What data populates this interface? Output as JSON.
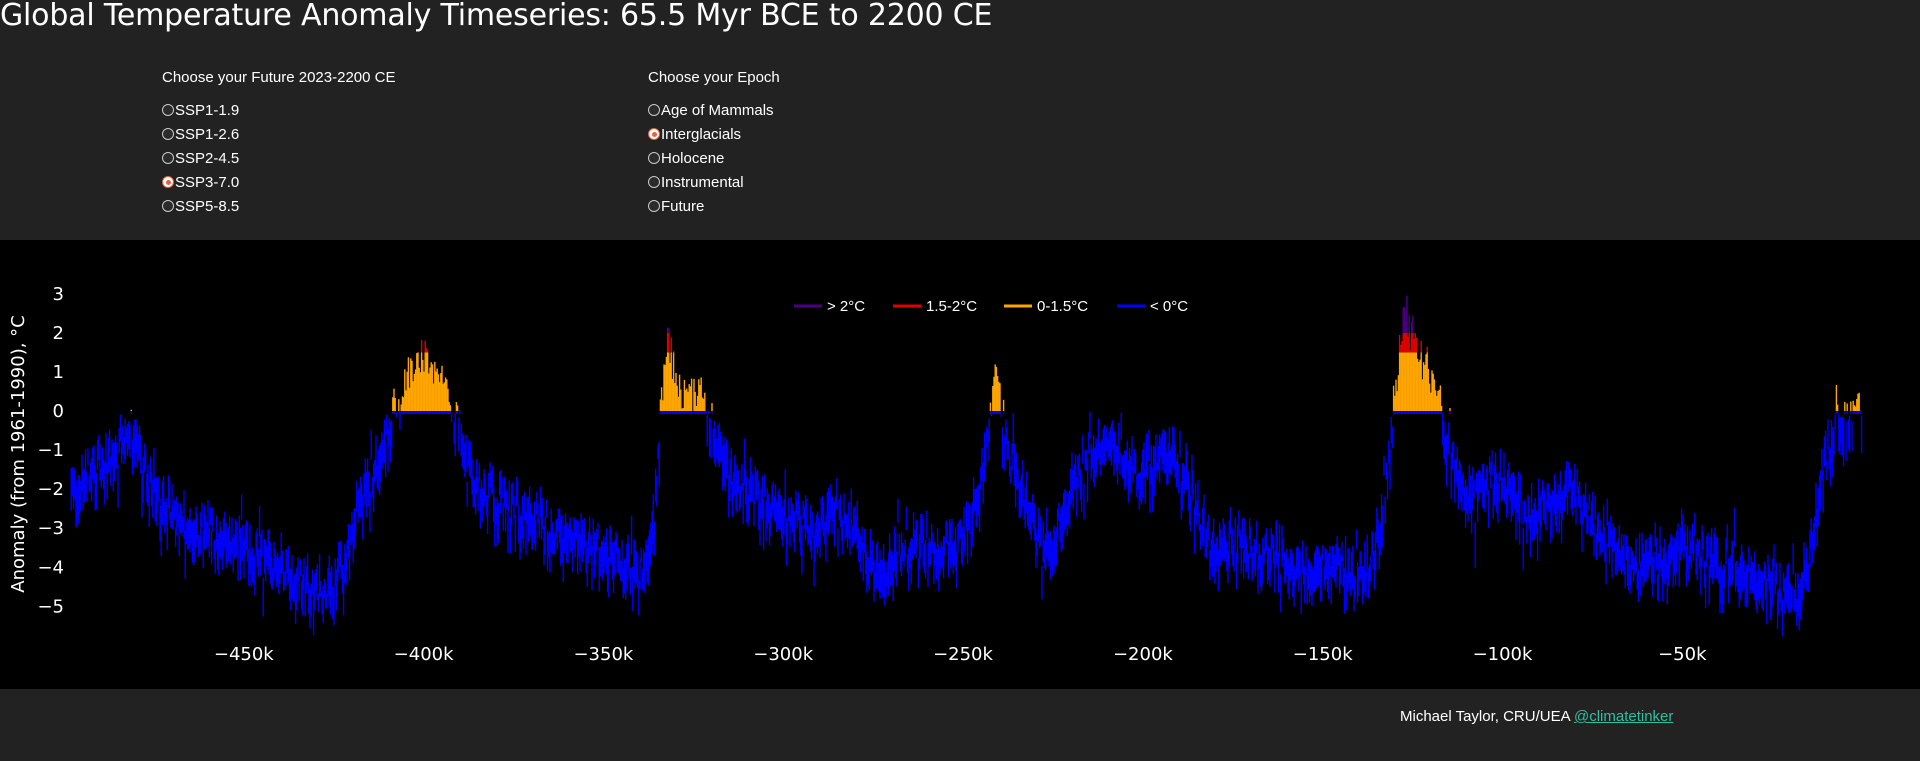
{
  "title": "Global Temperature Anomaly Timeseries: 65.5 Myr BCE to 2200 CE",
  "future_control": {
    "label": "Choose your Future 2023-2200 CE",
    "options": [
      {
        "label": "SSP1-1.9",
        "selected": false
      },
      {
        "label": "SSP1-2.6",
        "selected": false
      },
      {
        "label": "SSP2-4.5",
        "selected": false
      },
      {
        "label": "SSP3-7.0",
        "selected": true
      },
      {
        "label": "SSP5-8.5",
        "selected": false
      }
    ]
  },
  "epoch_control": {
    "label": "Choose your Epoch",
    "options": [
      {
        "label": "Age of Mammals",
        "selected": false
      },
      {
        "label": "Interglacials",
        "selected": true
      },
      {
        "label": "Holocene",
        "selected": false
      },
      {
        "label": "Instrumental",
        "selected": false
      },
      {
        "label": "Future",
        "selected": false
      }
    ]
  },
  "footer": {
    "credit": "Michael Taylor, CRU/UEA",
    "link_text": "@climatetinker"
  },
  "colors": {
    "gt2": "#4b0082",
    "c15_2": "#e00000",
    "c0_15": "#ffa500",
    "lt0": "#0000ff",
    "page_bg": "#222222",
    "plot_bg": "#000000",
    "link": "#2fbfa0",
    "radio_selected": "#e8603c"
  },
  "chart_data": {
    "type": "bar",
    "title": "",
    "xlabel": "",
    "ylabel": "Anomaly (from 1961-1990), °C",
    "xlim": [
      -500000,
      2200
    ],
    "ylim": [
      -5.4,
      3.2
    ],
    "xticks": [
      -450000,
      -400000,
      -350000,
      -300000,
      -250000,
      -200000,
      -150000,
      -100000,
      -50000
    ],
    "xtick_labels": [
      "−450k",
      "−400k",
      "−350k",
      "−300k",
      "−250k",
      "−200k",
      "−150k",
      "−100k",
      "−50k"
    ],
    "yticks": [
      3,
      2,
      1,
      0,
      -1,
      -2,
      -3,
      -4,
      -5
    ],
    "ytick_labels": [
      "3",
      "2",
      "1",
      "0",
      "−1",
      "−2",
      "−3",
      "−4",
      "−5"
    ],
    "legend": {
      "placement": "top-center",
      "entries": [
        {
          "label": "> 2°C",
          "color_key": "gt2"
        },
        {
          "label": "1.5-2°C",
          "color_key": "c15_2"
        },
        {
          "label": "0-1.5°C",
          "color_key": "c0_15"
        },
        {
          "label": "< 0°C",
          "color_key": "lt0"
        }
      ]
    },
    "bins": [
      {
        "label": "> 2°C",
        "range": [
          2,
          null
        ]
      },
      {
        "label": "1.5-2°C",
        "range": [
          1.5,
          2
        ]
      },
      {
        "label": "0-1.5°C",
        "range": [
          0,
          1.5
        ]
      },
      {
        "label": "< 0°C",
        "range": [
          null,
          0
        ]
      }
    ],
    "x_unit": "years relative to present",
    "control_points": [
      [
        -498000,
        -2.0
      ],
      [
        -493000,
        -1.5
      ],
      [
        -487000,
        -1.1
      ],
      [
        -482000,
        -0.6
      ],
      [
        -478000,
        -1.3
      ],
      [
        -472000,
        -2.3
      ],
      [
        -465000,
        -2.9
      ],
      [
        -458000,
        -3.1
      ],
      [
        -452000,
        -3.3
      ],
      [
        -446000,
        -3.6
      ],
      [
        -440000,
        -3.8
      ],
      [
        -434000,
        -4.3
      ],
      [
        -429000,
        -4.6
      ],
      [
        -425000,
        -4.5
      ],
      [
        -421000,
        -3.6
      ],
      [
        -418000,
        -2.3
      ],
      [
        -414000,
        -1.4
      ],
      [
        -410000,
        -0.6
      ],
      [
        -406000,
        0.4
      ],
      [
        -403000,
        1.0
      ],
      [
        -401000,
        1.4
      ],
      [
        -398000,
        1.0
      ],
      [
        -396000,
        1.1
      ],
      [
        -393000,
        0.4
      ],
      [
        -390000,
        -0.6
      ],
      [
        -387000,
        -1.4
      ],
      [
        -383000,
        -2.0
      ],
      [
        -378000,
        -2.3
      ],
      [
        -372000,
        -2.6
      ],
      [
        -366000,
        -2.9
      ],
      [
        -360000,
        -3.2
      ],
      [
        -354000,
        -3.3
      ],
      [
        -348000,
        -3.5
      ],
      [
        -343000,
        -3.8
      ],
      [
        -339000,
        -4.1
      ],
      [
        -337000,
        -3.4
      ],
      [
        -335000,
        -1.6
      ],
      [
        -333500,
        0.6
      ],
      [
        -332000,
        1.8
      ],
      [
        -330500,
        1.0
      ],
      [
        -329000,
        0.5
      ],
      [
        -326000,
        0.4
      ],
      [
        -323000,
        0.3
      ],
      [
        -320000,
        -0.2
      ],
      [
        -317000,
        -1.2
      ],
      [
        -313000,
        -1.7
      ],
      [
        -309000,
        -2.0
      ],
      [
        -305000,
        -2.3
      ],
      [
        -300000,
        -2.6
      ],
      [
        -295000,
        -2.8
      ],
      [
        -291000,
        -3.3
      ],
      [
        -287000,
        -2.3
      ],
      [
        -283000,
        -2.5
      ],
      [
        -278000,
        -3.3
      ],
      [
        -273000,
        -4.1
      ],
      [
        -268000,
        -3.4
      ],
      [
        -262000,
        -3.3
      ],
      [
        -257000,
        -3.4
      ],
      [
        -252000,
        -3.4
      ],
      [
        -248000,
        -2.9
      ],
      [
        -244000,
        -1.3
      ],
      [
        -242000,
        0.2
      ],
      [
        -241000,
        1.3
      ],
      [
        -239500,
        0.1
      ],
      [
        -237500,
        -1.2
      ],
      [
        -234000,
        -1.8
      ],
      [
        -230000,
        -3.0
      ],
      [
        -226000,
        -3.5
      ],
      [
        -223000,
        -2.7
      ],
      [
        -219000,
        -1.8
      ],
      [
        -215000,
        -1.1
      ],
      [
        -210000,
        -0.7
      ],
      [
        -206000,
        -1.0
      ],
      [
        -201000,
        -1.5
      ],
      [
        -197000,
        -1.2
      ],
      [
        -193000,
        -0.9
      ],
      [
        -189000,
        -1.3
      ],
      [
        -186000,
        -2.2
      ],
      [
        -182000,
        -3.2
      ],
      [
        -177000,
        -3.5
      ],
      [
        -172000,
        -3.3
      ],
      [
        -167000,
        -3.6
      ],
      [
        -162000,
        -3.5
      ],
      [
        -157000,
        -3.9
      ],
      [
        -152000,
        -3.9
      ],
      [
        -147000,
        -3.9
      ],
      [
        -142000,
        -4.0
      ],
      [
        -137000,
        -3.8
      ],
      [
        -134000,
        -3.3
      ],
      [
        -132000,
        -1.6
      ],
      [
        -130000,
        0.2
      ],
      [
        -128500,
        1.6
      ],
      [
        -127000,
        2.6
      ],
      [
        -125500,
        1.8
      ],
      [
        -123500,
        1.3
      ],
      [
        -121000,
        1.1
      ],
      [
        -118000,
        0.4
      ],
      [
        -115000,
        -0.8
      ],
      [
        -112000,
        -1.5
      ],
      [
        -108000,
        -2.2
      ],
      [
        -104000,
        -1.7
      ],
      [
        -100000,
        -1.6
      ],
      [
        -96000,
        -2.2
      ],
      [
        -92000,
        -2.6
      ],
      [
        -88000,
        -2.3
      ],
      [
        -84000,
        -2.1
      ],
      [
        -80000,
        -2.0
      ],
      [
        -76000,
        -2.5
      ],
      [
        -72000,
        -3.1
      ],
      [
        -68000,
        -3.5
      ],
      [
        -64000,
        -3.8
      ],
      [
        -60000,
        -3.9
      ],
      [
        -55000,
        -3.7
      ],
      [
        -50000,
        -3.3
      ],
      [
        -46000,
        -3.7
      ],
      [
        -41000,
        -3.6
      ],
      [
        -37000,
        -3.8
      ],
      [
        -32000,
        -4.0
      ],
      [
        -27000,
        -4.3
      ],
      [
        -22000,
        -4.7
      ],
      [
        -18000,
        -4.5
      ],
      [
        -15000,
        -3.6
      ],
      [
        -12500,
        -2.4
      ],
      [
        -10000,
        -1.0
      ],
      [
        -7000,
        -0.4
      ],
      [
        -3000,
        -0.3
      ],
      [
        0,
        0.0
      ]
    ]
  }
}
